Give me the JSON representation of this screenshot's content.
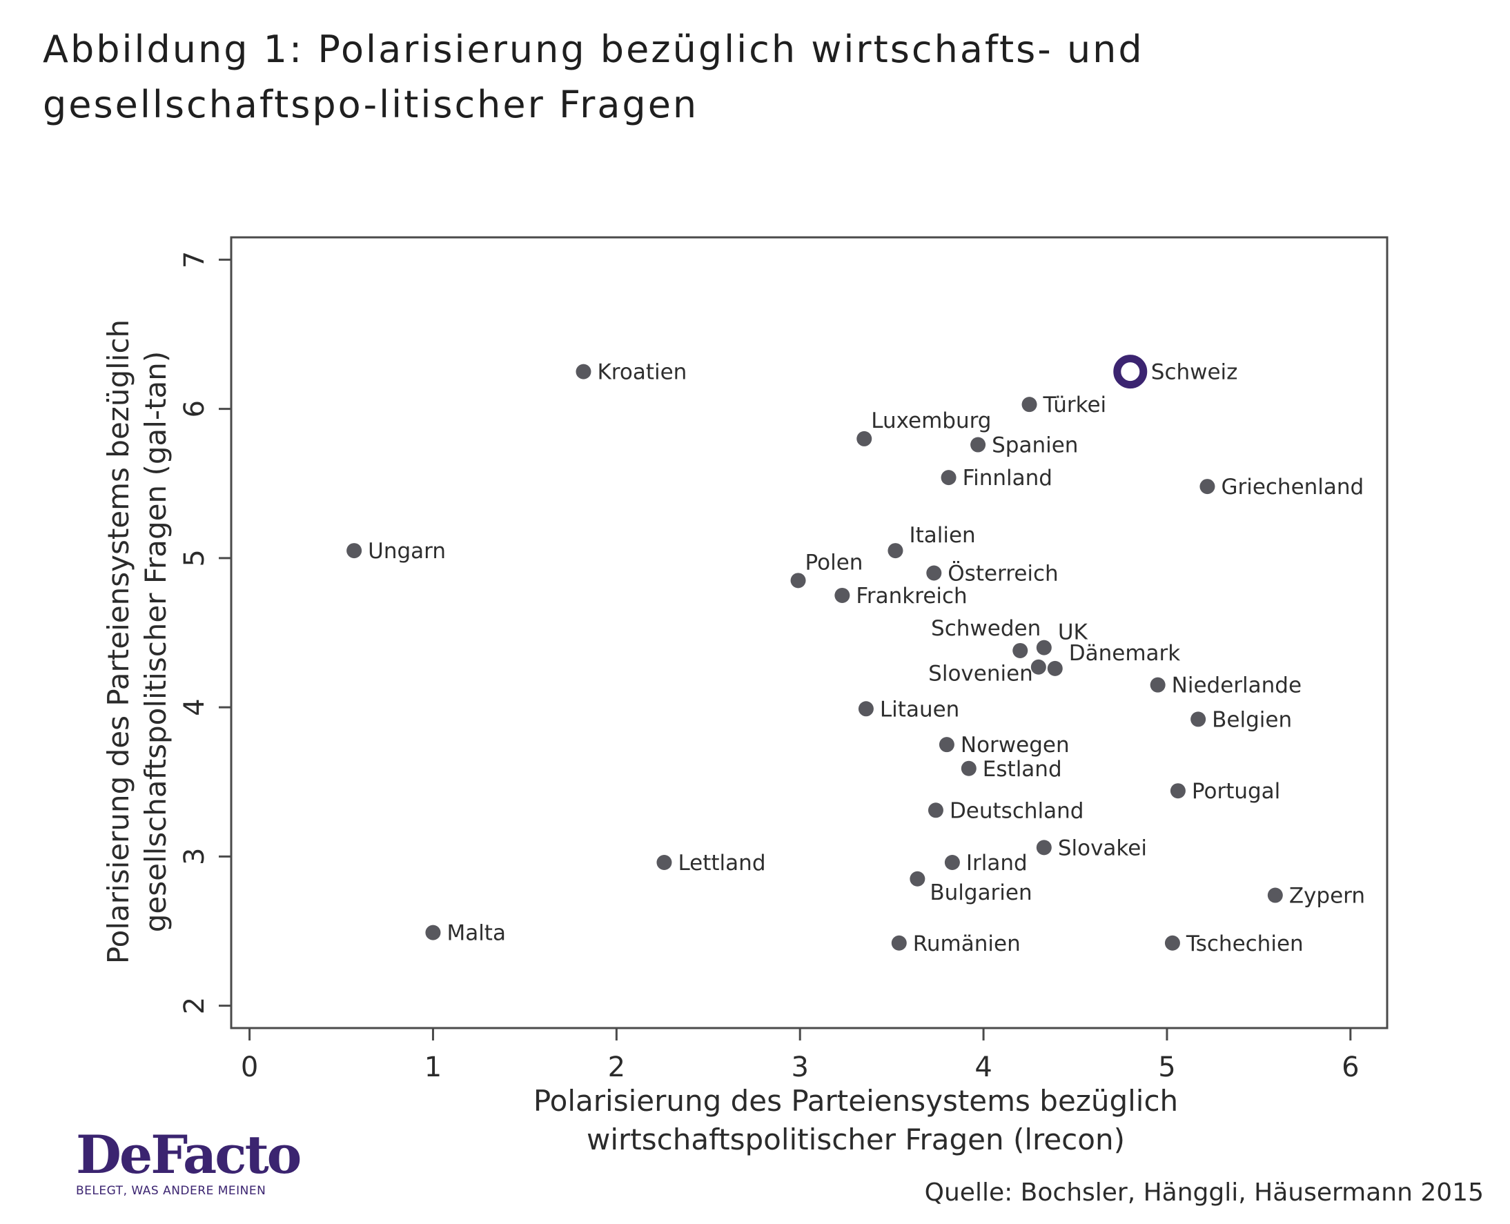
{
  "title": "Abbildung 1: Polarisierung bezüglich wirtschafts- und gesellschaftspo-litischer Fragen",
  "brand": {
    "name": "DeFacto",
    "tagline": "BELEGT, WAS ANDERE MEINEN"
  },
  "source": "Quelle: Bochsler, Hänggli, Häusermann 2015",
  "colors": {
    "point": "#58585e",
    "highlight": "#3b2470",
    "axis": "#4a4a4a"
  },
  "chart_data": {
    "type": "scatter",
    "xlabel": [
      "Polarisierung des Parteiensystems bezüglich",
      "wirtschaftspolitischer Fragen (lrecon)"
    ],
    "ylabel": [
      "Polarisierung des Parteiensystems bezüglich",
      "gesellschaftspolitischer Fragen (gal-tan)"
    ],
    "xlim": [
      -0.1,
      6.2
    ],
    "ylim": [
      1.85,
      7.15
    ],
    "xticks": [
      0,
      1,
      2,
      3,
      4,
      5,
      6
    ],
    "yticks": [
      2,
      3,
      4,
      5,
      6,
      7
    ],
    "grid": false,
    "highlight": "Schweiz",
    "points": [
      {
        "label": "Kroatien",
        "x": 1.82,
        "y": 6.25,
        "pos": "right"
      },
      {
        "label": "Schweiz",
        "x": 4.8,
        "y": 6.25,
        "pos": "right"
      },
      {
        "label": "Türkei",
        "x": 4.25,
        "y": 6.03,
        "pos": "right"
      },
      {
        "label": "Luxemburg",
        "x": 3.35,
        "y": 5.8,
        "pos": "above"
      },
      {
        "label": "Spanien",
        "x": 3.97,
        "y": 5.76,
        "pos": "right"
      },
      {
        "label": "Finnland",
        "x": 3.81,
        "y": 5.54,
        "pos": "right"
      },
      {
        "label": "Griechenland",
        "x": 5.22,
        "y": 5.48,
        "pos": "right"
      },
      {
        "label": "Ungarn",
        "x": 0.57,
        "y": 5.05,
        "pos": "right"
      },
      {
        "label": "Italien",
        "x": 3.52,
        "y": 5.05,
        "pos": "aboveright"
      },
      {
        "label": "Polen",
        "x": 2.99,
        "y": 4.85,
        "pos": "above"
      },
      {
        "label": "Österreich",
        "x": 3.73,
        "y": 4.9,
        "pos": "right"
      },
      {
        "label": "Frankreich",
        "x": 3.23,
        "y": 4.75,
        "pos": "right"
      },
      {
        "label": "Schweden",
        "x": 4.2,
        "y": 4.38,
        "pos": "aboveleft"
      },
      {
        "label": "UK",
        "x": 4.33,
        "y": 4.4,
        "pos": "aboveright"
      },
      {
        "label": "Slovenien",
        "x": 4.3,
        "y": 4.27,
        "pos": "left"
      },
      {
        "label": "Dänemark",
        "x": 4.39,
        "y": 4.26,
        "pos": "aboveright"
      },
      {
        "label": "Niederlande",
        "x": 4.95,
        "y": 4.15,
        "pos": "right"
      },
      {
        "label": "Litauen",
        "x": 3.36,
        "y": 3.99,
        "pos": "right"
      },
      {
        "label": "Belgien",
        "x": 5.17,
        "y": 3.92,
        "pos": "right"
      },
      {
        "label": "Norwegen",
        "x": 3.8,
        "y": 3.75,
        "pos": "right"
      },
      {
        "label": "Estland",
        "x": 3.92,
        "y": 3.59,
        "pos": "right"
      },
      {
        "label": "Portugal",
        "x": 5.06,
        "y": 3.44,
        "pos": "right"
      },
      {
        "label": "Deutschland",
        "x": 3.74,
        "y": 3.31,
        "pos": "right"
      },
      {
        "label": "Slovakei",
        "x": 4.33,
        "y": 3.06,
        "pos": "right"
      },
      {
        "label": "Lettland",
        "x": 2.26,
        "y": 2.96,
        "pos": "right"
      },
      {
        "label": "Irland",
        "x": 3.83,
        "y": 2.96,
        "pos": "right"
      },
      {
        "label": "Bulgarien",
        "x": 3.64,
        "y": 2.85,
        "pos": "belowright"
      },
      {
        "label": "Zypern",
        "x": 5.59,
        "y": 2.74,
        "pos": "right"
      },
      {
        "label": "Malta",
        "x": 1.0,
        "y": 2.49,
        "pos": "right"
      },
      {
        "label": "Rumänien",
        "x": 3.54,
        "y": 2.42,
        "pos": "right"
      },
      {
        "label": "Tschechien",
        "x": 5.03,
        "y": 2.42,
        "pos": "right"
      }
    ]
  }
}
